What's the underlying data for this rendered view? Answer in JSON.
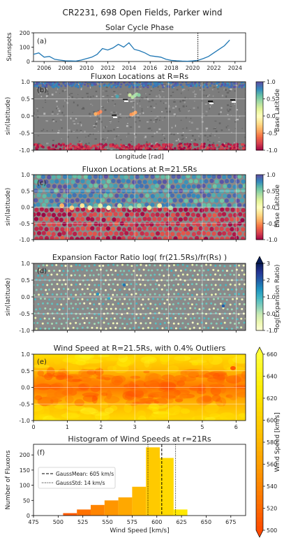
{
  "suptitle": "CR2231, 698 Open Fields, Parker wind",
  "palette": {
    "blue": "#1f77b4",
    "spectral": [
      "#9e0142",
      "#d53e4f",
      "#f46d43",
      "#fdae61",
      "#fee08b",
      "#ffffbf",
      "#e6f598",
      "#abdda4",
      "#66c2a5",
      "#3288bd",
      "#5e4fa2"
    ],
    "ylgnbu": [
      "#ffffd9",
      "#edf8b1",
      "#c7e9b4",
      "#7fcdbb",
      "#41b6c4",
      "#1d91c0",
      "#225ea8",
      "#253494",
      "#081d58"
    ],
    "autumn": [
      "#ff4a00",
      "#ff7a00",
      "#ffa300",
      "#ffca00",
      "#ffec00",
      "#ffff3a"
    ]
  },
  "chart_data": [
    {
      "id": "a",
      "type": "line",
      "tag": "(a)",
      "title": "Solar Cycle Phase",
      "ylabel": "Sunspots",
      "xlim": [
        2005,
        2025
      ],
      "ylim": [
        0,
        200
      ],
      "xticks": [
        2006,
        2008,
        2010,
        2012,
        2014,
        2016,
        2018,
        2020,
        2022,
        2024
      ],
      "yticks": [
        0,
        100,
        200
      ],
      "marker_year": 2020.5,
      "x": [
        2005.0,
        2005.5,
        2006.0,
        2006.5,
        2007.0,
        2007.5,
        2008.0,
        2008.5,
        2009.0,
        2009.5,
        2010.0,
        2010.5,
        2011.0,
        2011.5,
        2012.0,
        2012.5,
        2013.0,
        2013.5,
        2014.0,
        2014.5,
        2015.0,
        2015.5,
        2016.0,
        2016.5,
        2017.0,
        2017.5,
        2018.0,
        2018.5,
        2019.0,
        2019.5,
        2020.0,
        2020.5,
        2021.0,
        2021.5,
        2022.0,
        2022.5,
        2023.0,
        2023.5
      ],
      "y": [
        50,
        60,
        30,
        35,
        15,
        10,
        5,
        4,
        3,
        10,
        20,
        30,
        50,
        90,
        80,
        95,
        120,
        100,
        130,
        85,
        75,
        60,
        40,
        35,
        30,
        15,
        8,
        5,
        3,
        2,
        4,
        8,
        20,
        35,
        60,
        85,
        110,
        150
      ]
    },
    {
      "id": "b",
      "type": "scatter",
      "tag": "(b)",
      "title": "Fluxon Locations at R=Rs",
      "ylabel": "sin(latitude)",
      "xlabel": "Longitude [rad]",
      "xlim": [
        0,
        6.283
      ],
      "ylim": [
        -1,
        1
      ],
      "yticks": [
        -1.0,
        -0.5,
        0.0,
        0.5,
        1.0
      ],
      "colorbar": {
        "label": "Base Latitude",
        "range": [
          -1,
          1
        ],
        "ticks": [
          -1.0,
          -0.5,
          0.0,
          0.5,
          1.0
        ]
      }
    },
    {
      "id": "c",
      "type": "scatter",
      "tag": "(c)",
      "title": "Fluxon Locations at R=21.5Rs",
      "ylabel": "sin(latitude)",
      "xlim": [
        0,
        6.283
      ],
      "ylim": [
        -1,
        1
      ],
      "yticks": [
        -1.0,
        -0.5,
        0.0,
        0.5,
        1.0
      ],
      "colorbar": {
        "label": "Base Latitude",
        "range": [
          -1,
          1
        ],
        "ticks": [
          -1.0,
          -0.5,
          0.0,
          0.5,
          1.0
        ]
      }
    },
    {
      "id": "d",
      "type": "scatter",
      "tag": "(d)",
      "title": "Expansion Factor Ratio log( fr(21.5Rs)/fr(Rs) )",
      "ylabel": "sin(latitude)",
      "xlim": [
        0,
        6.283
      ],
      "ylim": [
        -1,
        1
      ],
      "yticks": [
        -1.0,
        -0.5,
        0.0,
        0.5,
        1.0
      ],
      "colorbar": {
        "label": "log(Expansion Ratio)",
        "range": [
          -1,
          3
        ],
        "ticks": [
          -1,
          0,
          1,
          2,
          3
        ]
      }
    },
    {
      "id": "e",
      "type": "heatmap",
      "tag": "(e)",
      "title": "Wind Speed at R=21.5Rs, with 0.4% Outliers",
      "xlim": [
        0,
        6.283
      ],
      "ylim": [
        -1,
        1
      ],
      "xticks": [
        0,
        1,
        2,
        3,
        4,
        5,
        6
      ],
      "yticks": [
        -1.0,
        -0.5,
        0.0,
        0.5,
        1.0
      ],
      "colorbar": {
        "label": "Wind Speed [km/s]",
        "range": [
          500,
          660
        ],
        "ticks": [
          500,
          520,
          540,
          560,
          580,
          600,
          620,
          640,
          660
        ]
      }
    },
    {
      "id": "f",
      "type": "bar",
      "tag": "(f)",
      "title": "Histogram of Wind Speeds at r=21Rs",
      "xlabel": "Wind Speed [km/s]",
      "ylabel": "Number of Fluxons",
      "xlim": [
        475,
        690
      ],
      "ylim": [
        0,
        235
      ],
      "xticks": [
        475,
        500,
        525,
        550,
        575,
        600,
        625,
        650,
        675
      ],
      "yticks": [
        0,
        50,
        100,
        150,
        200
      ],
      "bin_edges": [
        505,
        519,
        533,
        547,
        561,
        575,
        589,
        603,
        617,
        631
      ],
      "counts": [
        8,
        20,
        35,
        50,
        60,
        95,
        225,
        190,
        20
      ],
      "mean": 605,
      "std": 14,
      "legend": [
        "GaussMean: 605 km/s",
        "GaussStd: 14 km/s"
      ]
    }
  ]
}
